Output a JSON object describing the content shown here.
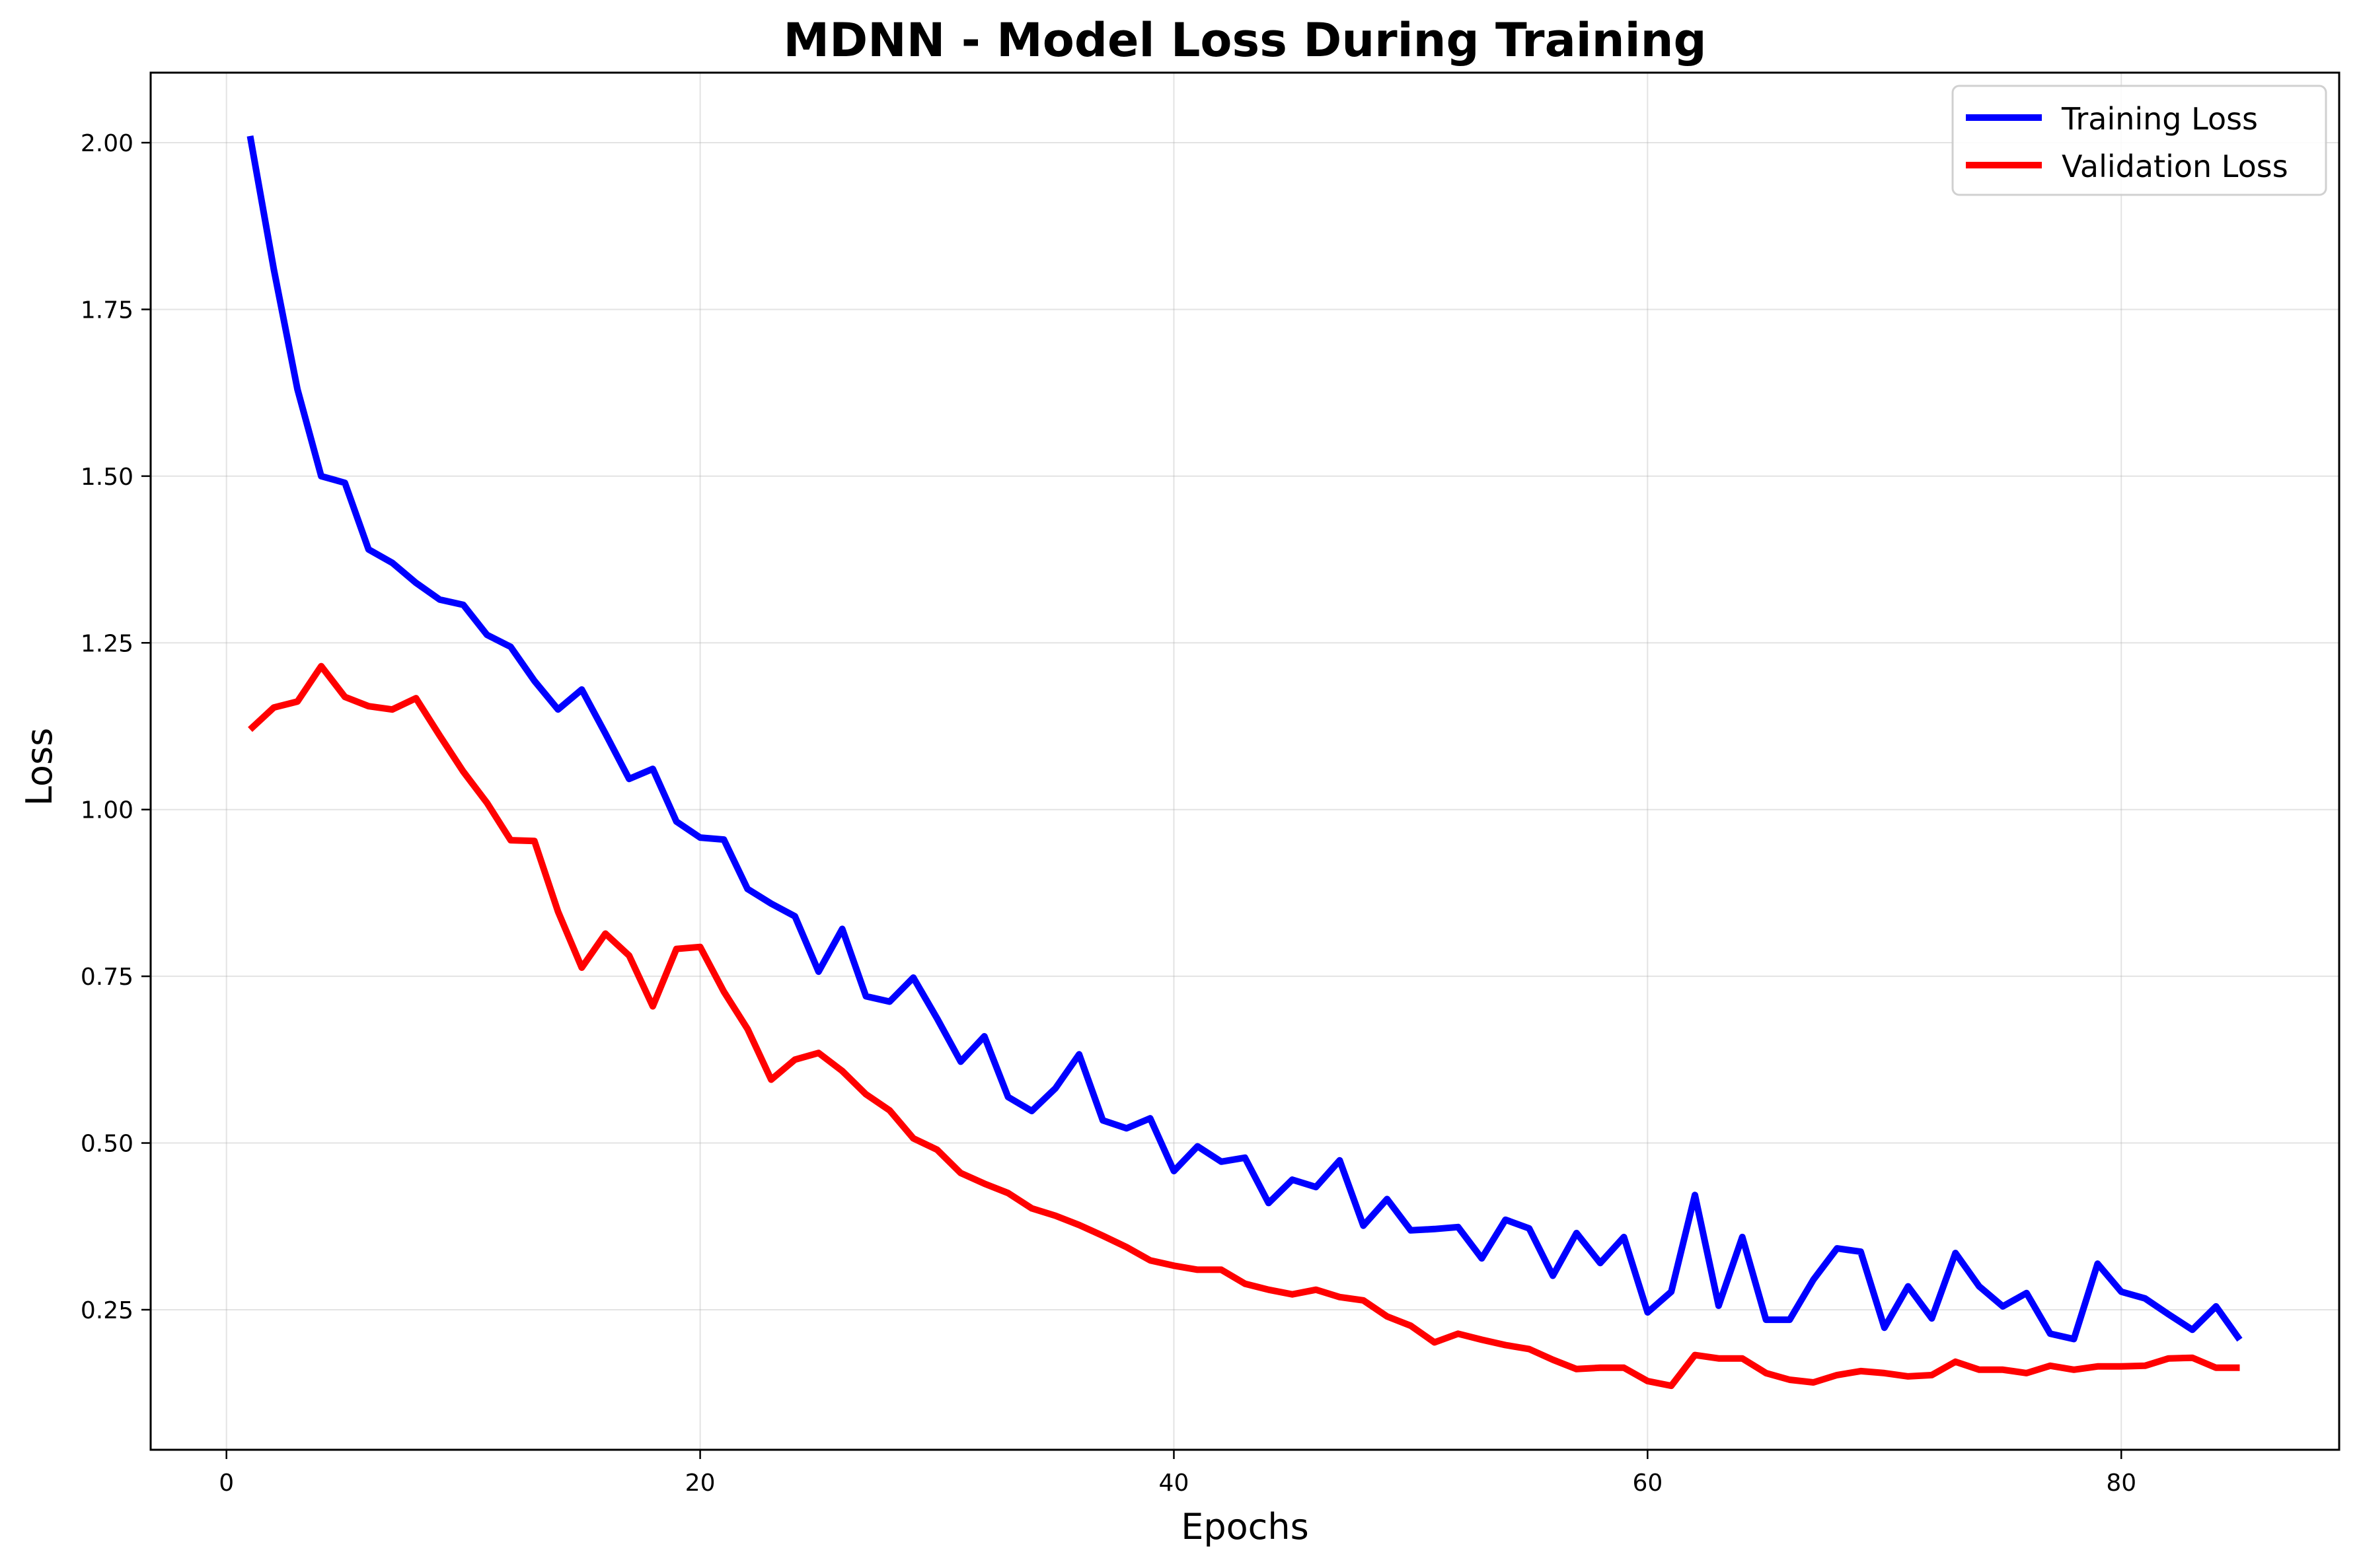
{
  "chart_data": {
    "type": "line",
    "title": "MDNN - Model Loss During Training",
    "xlabel": "Epochs",
    "ylabel": "Loss",
    "xlim": [
      -3.2,
      89.2
    ],
    "ylim": [
      0.04,
      2.105
    ],
    "x_ticks": [
      0,
      20,
      40,
      60,
      80
    ],
    "y_ticks": [
      0.25,
      0.5,
      0.75,
      1.0,
      1.25,
      1.5,
      1.75,
      2.0
    ],
    "x_tick_labels": [
      "0",
      "20",
      "40",
      "60",
      "80"
    ],
    "y_tick_labels": [
      "0.25",
      "0.50",
      "0.75",
      "1.00",
      "1.25",
      "1.50",
      "1.75",
      "2.00"
    ],
    "grid": true,
    "legend_position": "top-right",
    "x": [
      1,
      2,
      3,
      4,
      5,
      6,
      7,
      8,
      9,
      10,
      11,
      12,
      13,
      14,
      15,
      16,
      17,
      18,
      19,
      20,
      21,
      22,
      23,
      24,
      25,
      26,
      27,
      28,
      29,
      30,
      31,
      32,
      33,
      34,
      35,
      36,
      37,
      38,
      39,
      40,
      41,
      42,
      43,
      44,
      45,
      46,
      47,
      48,
      49,
      50,
      51,
      52,
      53,
      54,
      55,
      56,
      57,
      58,
      59,
      60,
      61,
      62,
      63,
      64,
      65,
      66,
      67,
      68,
      69,
      70,
      71,
      72,
      73,
      74,
      75,
      76,
      77,
      78,
      79,
      80,
      81,
      82,
      83,
      84,
      85
    ],
    "series": [
      {
        "name": "Training Loss",
        "color": "#0000ff",
        "values": [
          2.01,
          1.81,
          1.63,
          1.5,
          1.49,
          1.39,
          1.37,
          1.34,
          1.315,
          1.307,
          1.262,
          1.244,
          1.193,
          1.15,
          1.18,
          1.114,
          1.046,
          1.061,
          0.982,
          0.958,
          0.955,
          0.881,
          0.859,
          0.84,
          0.757,
          0.821,
          0.72,
          0.712,
          0.748,
          0.687,
          0.622,
          0.66,
          0.569,
          0.548,
          0.582,
          0.633,
          0.534,
          0.522,
          0.537,
          0.458,
          0.495,
          0.472,
          0.478,
          0.41,
          0.445,
          0.434,
          0.474,
          0.376,
          0.416,
          0.369,
          0.371,
          0.374,
          0.327,
          0.385,
          0.372,
          0.301,
          0.365,
          0.32,
          0.359,
          0.246,
          0.277,
          0.422,
          0.256,
          0.359,
          0.235,
          0.235,
          0.295,
          0.342,
          0.337,
          0.223,
          0.285,
          0.237,
          0.335,
          0.285,
          0.255,
          0.275,
          0.214,
          0.206,
          0.319,
          0.277,
          0.267,
          0.243,
          0.22,
          0.255,
          0.205
        ]
      },
      {
        "name": "Validation Loss",
        "color": "#ff0000",
        "values": [
          1.12,
          1.153,
          1.162,
          1.215,
          1.169,
          1.155,
          1.15,
          1.167,
          1.111,
          1.057,
          1.01,
          0.954,
          0.953,
          0.847,
          0.763,
          0.814,
          0.781,
          0.705,
          0.791,
          0.794,
          0.727,
          0.671,
          0.595,
          0.625,
          0.635,
          0.608,
          0.573,
          0.549,
          0.507,
          0.49,
          0.455,
          0.439,
          0.425,
          0.402,
          0.391,
          0.377,
          0.361,
          0.344,
          0.324,
          0.316,
          0.31,
          0.31,
          0.289,
          0.28,
          0.273,
          0.28,
          0.269,
          0.264,
          0.24,
          0.226,
          0.201,
          0.214,
          0.205,
          0.197,
          0.191,
          0.175,
          0.161,
          0.163,
          0.163,
          0.143,
          0.136,
          0.182,
          0.177,
          0.177,
          0.155,
          0.145,
          0.141,
          0.152,
          0.158,
          0.155,
          0.15,
          0.152,
          0.172,
          0.16,
          0.16,
          0.155,
          0.166,
          0.16,
          0.165,
          0.165,
          0.166,
          0.177,
          0.178,
          0.163,
          0.163
        ]
      }
    ]
  }
}
